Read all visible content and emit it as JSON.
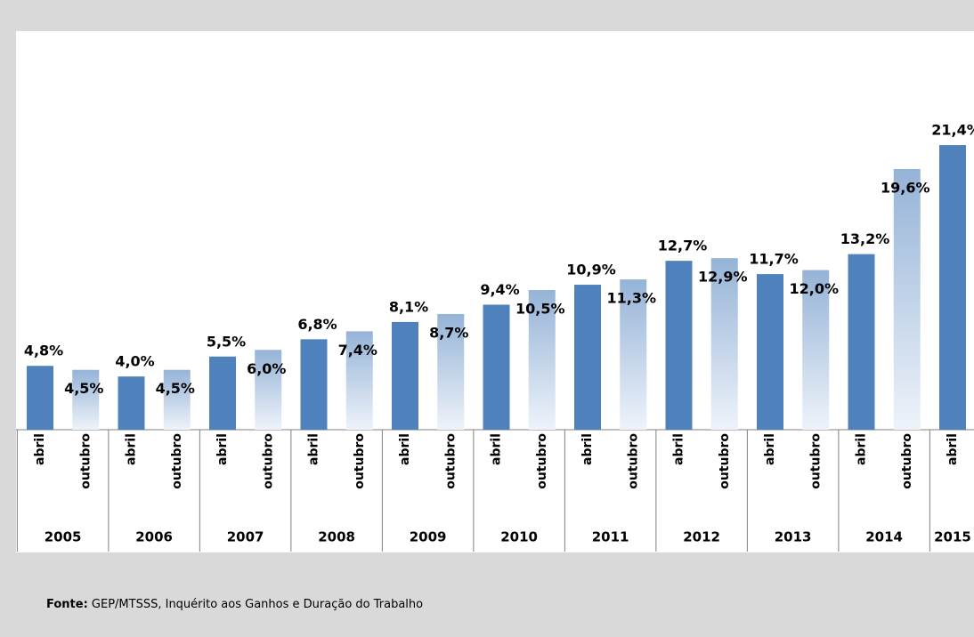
{
  "chart_data": {
    "type": "bar",
    "categories": [
      "abril",
      "outubro",
      "abril",
      "outubro",
      "abril",
      "outubro",
      "abril",
      "outubro",
      "abril",
      "outubro",
      "abril",
      "outubro",
      "abril",
      "outubro",
      "abril",
      "outubro",
      "abril",
      "outubro",
      "abril",
      "outubro",
      "abril"
    ],
    "years": [
      "2005",
      "2006",
      "2007",
      "2008",
      "2009",
      "2010",
      "2011",
      "2012",
      "2013",
      "2014",
      "2015"
    ],
    "values": [
      4.8,
      4.5,
      4.0,
      4.5,
      5.5,
      6.0,
      6.8,
      7.4,
      8.1,
      8.7,
      9.4,
      10.5,
      10.9,
      11.3,
      12.7,
      12.9,
      11.7,
      12.0,
      13.2,
      19.6,
      21.4
    ],
    "value_labels": [
      "4,8%",
      "4,5%",
      "4,0%",
      "4,5%",
      "5,5%",
      "6,0%",
      "6,8%",
      "7,4%",
      "8,1%",
      "8,7%",
      "9,4%",
      "10,5%",
      "10,9%",
      "11,3%",
      "12,7%",
      "12,9%",
      "11,7%",
      "12,0%",
      "13,2%",
      "19,6%",
      "21,4%"
    ],
    "colors": [
      "#4f81bd",
      "#95b3d7",
      "#4f81bd",
      "#95b3d7",
      "#4f81bd",
      "#95b3d7",
      "#4f81bd",
      "#95b3d7",
      "#4f81bd",
      "#95b3d7",
      "#4f81bd",
      "#95b3d7",
      "#4f81bd",
      "#95b3d7",
      "#4f81bd",
      "#95b3d7",
      "#4f81bd",
      "#95b3d7",
      "#4f81bd",
      "#95b3d7",
      "#4f81bd"
    ],
    "gradient": [
      false,
      true,
      false,
      true,
      false,
      true,
      false,
      true,
      false,
      true,
      false,
      true,
      false,
      true,
      false,
      true,
      false,
      true,
      false,
      true,
      false
    ],
    "source_label": "Fonte:",
    "source": "GEP/MTSSS, Inquérito aos Ganhos e Duração do Trabalho"
  }
}
